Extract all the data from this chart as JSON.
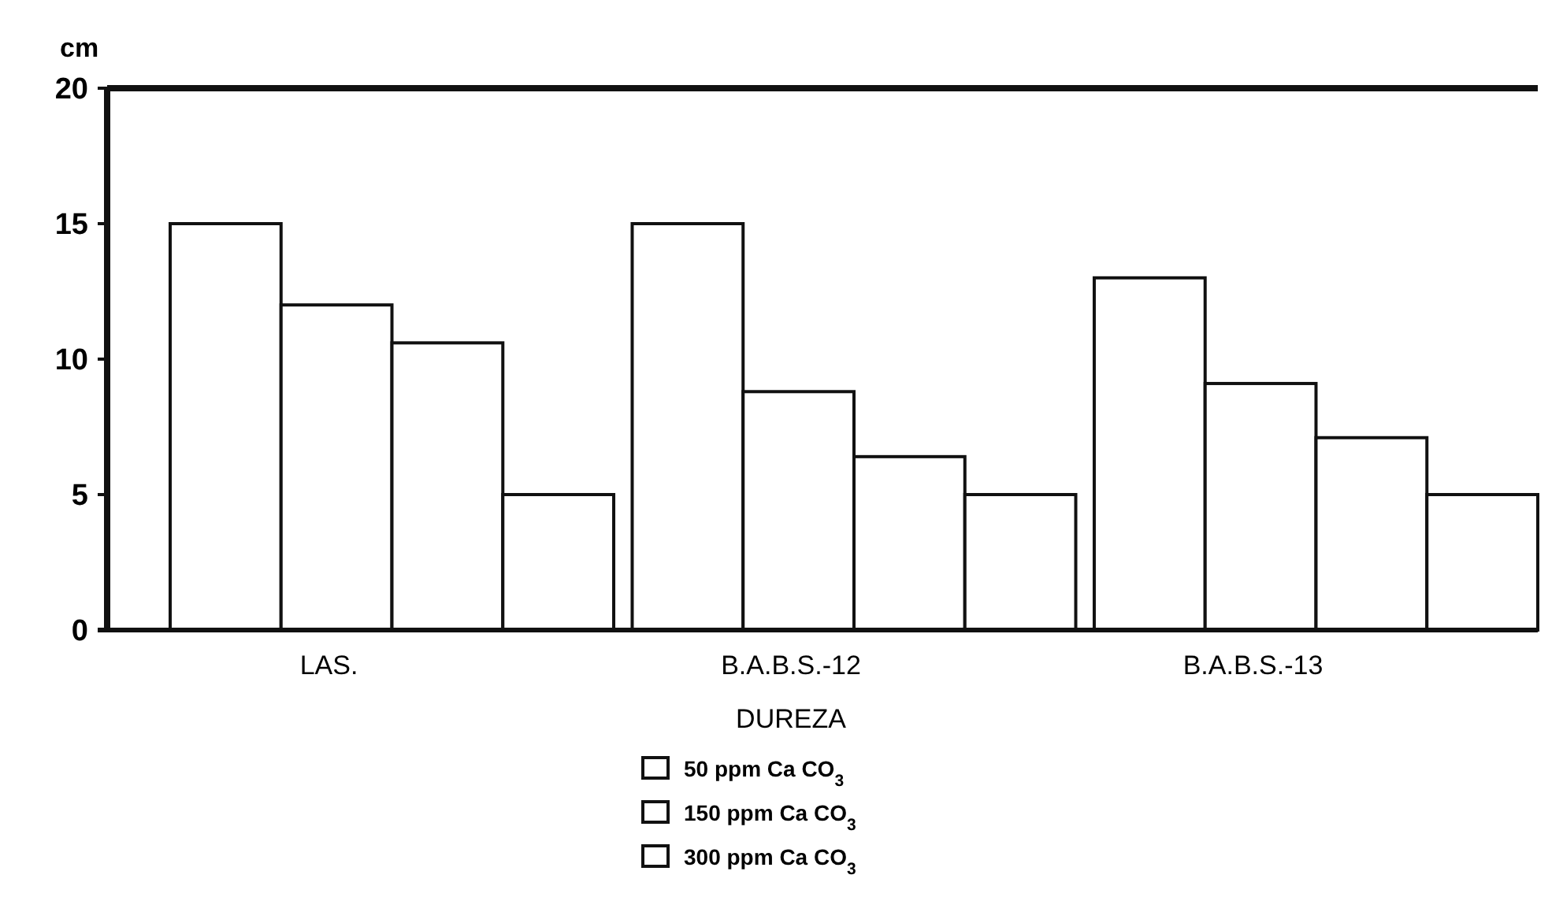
{
  "chart_data": {
    "type": "bar",
    "ylabel": "cm",
    "xlabel": "DUREZA",
    "categories": [
      "LAS.",
      "B.A.B.S.-12",
      "B.A.B.S.-13"
    ],
    "series": [
      {
        "color": "#ffffff",
        "values": [
          15,
          15,
          13
        ]
      },
      {
        "name": "50 ppm Ca CO$_{3}$",
        "color": "#ffffff",
        "values": [
          12,
          8.8,
          9.1
        ]
      },
      {
        "name": "150 ppm Ca CO$_{3}$",
        "color": "#ffffff",
        "values": [
          10.6,
          6.4,
          7.1
        ]
      },
      {
        "name": "300 ppm Ca CO$_{3}$",
        "color": "#ffffff",
        "values": [
          5,
          5,
          5
        ]
      }
    ],
    "ylim": [
      0,
      20
    ],
    "yticks": [
      0,
      5,
      10,
      15,
      20
    ],
    "grid": false,
    "legend": "bottom"
  }
}
